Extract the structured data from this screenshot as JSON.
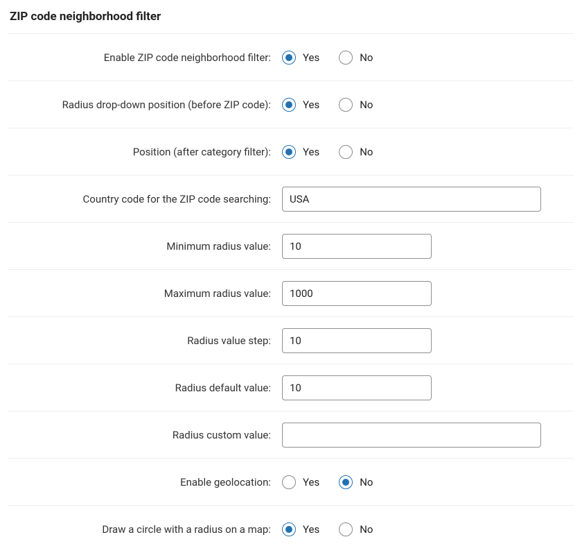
{
  "title": "ZIP code neighborhood filter",
  "labels": {
    "yes": "Yes",
    "no": "No"
  },
  "fields": {
    "enable_filter": {
      "label": "Enable ZIP code neighborhood filter:",
      "value": "yes"
    },
    "radius_position": {
      "label": "Radius drop-down position (before ZIP code):",
      "value": "yes"
    },
    "position_after_category": {
      "label": "Position (after category filter):",
      "value": "yes"
    },
    "country_code": {
      "label": "Country code for the ZIP code searching:",
      "value": "USA"
    },
    "min_radius": {
      "label": "Minimum radius value:",
      "value": "10"
    },
    "max_radius": {
      "label": "Maximum radius value:",
      "value": "1000"
    },
    "radius_step": {
      "label": "Radius value step:",
      "value": "10"
    },
    "radius_default": {
      "label": "Radius default value:",
      "value": "10"
    },
    "radius_custom": {
      "label": "Radius custom value:",
      "value": ""
    },
    "enable_geolocation": {
      "label": "Enable geolocation:",
      "value": "no"
    },
    "draw_circle": {
      "label": "Draw a circle with a radius on a map:",
      "value": "yes"
    }
  },
  "colors": {
    "accent": "#2271b1",
    "border": "#eee",
    "inputBorder": "#8c8f94",
    "text": "#222"
  }
}
